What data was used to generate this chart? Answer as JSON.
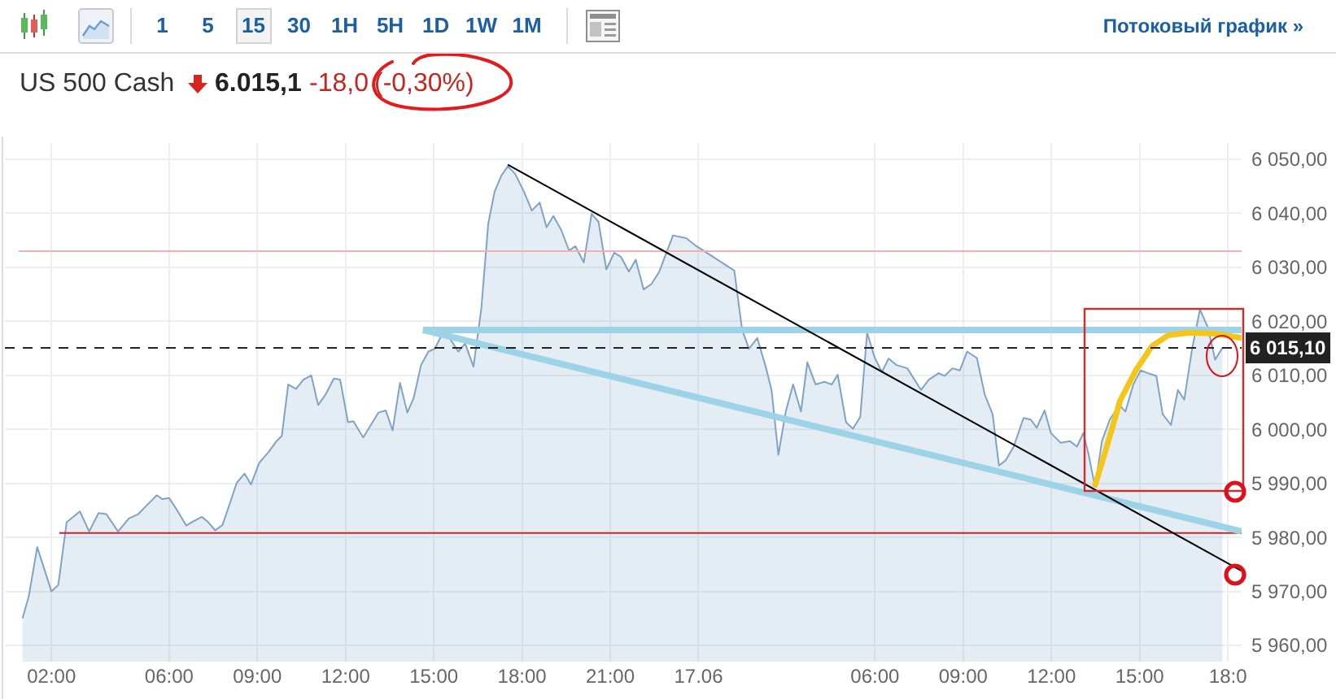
{
  "chart_data": {
    "type": "area",
    "title": "US 500 Cash",
    "annotations": [
      "1 5 15 30 1H 5H 1D 1W 1M",
      "Потоковый график »",
      "6.015,1",
      "-18,0",
      "(-0,30%)"
    ],
    "xlim": [
      "--06-16T00:25",
      "--06-17T18:28"
    ],
    "xticks": [
      {
        "value": "--06-16T02:00",
        "label": "02:00"
      },
      {
        "value": "--06-16T06:00",
        "label": "06:00"
      },
      {
        "value": "--06-16T09:00",
        "label": "09:00"
      },
      {
        "value": "--06-16T12:00",
        "label": "12:00"
      },
      {
        "value": "--06-16T15:00",
        "label": "15:00"
      },
      {
        "value": "--06-16T18:00",
        "label": "18:00"
      },
      {
        "value": "--06-16T21:00",
        "label": "21:00"
      },
      {
        "value": "--06-17",
        "label": "17.06"
      },
      {
        "value": "--06-17T06:00",
        "label": "06:00"
      },
      {
        "value": "--06-17T09:00",
        "label": "09:00"
      },
      {
        "value": "--06-17T12:00",
        "label": "12:00"
      },
      {
        "value": "--06-17T15:00",
        "label": "15:00"
      },
      {
        "value": "--06-17T18:00",
        "label": "18:0"
      }
    ],
    "ylim": [
      5957,
      6053
    ],
    "yticks": [
      {
        "value": 5960,
        "label": "5 960,00"
      },
      {
        "value": 5970,
        "label": "5 970,00"
      },
      {
        "value": 5980,
        "label": "5 980,00"
      },
      {
        "value": 5990,
        "label": "5 990,00"
      },
      {
        "value": 6000,
        "label": "6 000,00"
      },
      {
        "value": 6010,
        "label": "6 010,00"
      },
      {
        "value": 6020,
        "label": "6 020,00"
      },
      {
        "value": 6030,
        "label": "6 030,00"
      },
      {
        "value": 6040,
        "label": "6 040,00"
      },
      {
        "value": 6050,
        "label": "6 050,00"
      }
    ],
    "grid": true,
    "series": [
      {
        "color": "#7fa3c6",
        "x": [
          "--06-16T01:01",
          "--06-16T01:14",
          "--06-16T01:31",
          "--06-16T02:00",
          "--06-16T02:14",
          "--06-16T02:31",
          "--06-16T02:58",
          "--06-16T03:17",
          "--06-16T03:36",
          "--06-16T03:52",
          "--06-16T04:16",
          "--06-16T04:38",
          "--06-16T04:57",
          "--06-16T05:13",
          "--06-16T05:35",
          "--06-16T05:46",
          "--06-16T06:00",
          "--06-16T06:13",
          "--06-16T06:35",
          "--06-16T06:48",
          "--06-16T07:07",
          "--06-16T07:20",
          "--06-16T07:34",
          "--06-16T07:49",
          "--06-16T08:04",
          "--06-16T08:18",
          "--06-16T08:34",
          "--06-16T08:47",
          "--06-16T09:04",
          "--06-16T09:23",
          "--06-16T09:39",
          "--06-16T09:50",
          "--06-16T10:03",
          "--06-16T10:19",
          "--06-16T10:34",
          "--06-16T10:50",
          "--06-16T11:04",
          "--06-16T11:19",
          "--06-16T11:36",
          "--06-16T11:49",
          "--06-16T12:05",
          "--06-16T12:16",
          "--06-16T12:36",
          "--06-16T12:55",
          "--06-16T13:07",
          "--06-16T13:22",
          "--06-16T13:36",
          "--06-16T13:51",
          "--06-16T14:06",
          "--06-16T14:19",
          "--06-16T14:34",
          "--06-16T14:49",
          "--06-16T15:02",
          "--06-16T15:21",
          "--06-16T15:32",
          "--06-16T15:50",
          "--06-16T16:04",
          "--06-16T16:21",
          "--06-16T16:37",
          "--06-16T16:51",
          "--06-16T17:04",
          "--06-16T17:18",
          "--06-16T17:31",
          "--06-16T17:46",
          "--06-16T18:04",
          "--06-16T18:20",
          "--06-16T18:36",
          "--06-16T18:50",
          "--06-16T19:04",
          "--06-16T19:20",
          "--06-16T19:36",
          "--06-16T19:49",
          "--06-16T20:06",
          "--06-16T20:22",
          "--06-16T20:36",
          "--06-16T20:52",
          "--06-16T21:08",
          "--06-16T21:22",
          "--06-16T21:38",
          "--06-16T21:52",
          "--06-16T22:08",
          "--06-16T22:24",
          "--06-16T22:40",
          "--06-16T23:08",
          "--06-16T23:35",
          "--06-16T23:56",
          "--06-17T01:13",
          "--06-17T01:29",
          "--06-17T01:43",
          "--06-17T02:00",
          "--06-17T02:18",
          "--06-17T02:29",
          "--06-17T02:43",
          "--06-17T02:58",
          "--06-17T03:13",
          "--06-17T03:29",
          "--06-17T03:42",
          "--06-17T03:59",
          "--06-17T04:17",
          "--06-17T04:32",
          "--06-17T04:44",
          "--06-17T05:01",
          "--06-17T05:15",
          "--06-17T05:30",
          "--06-17T05:44",
          "--06-17T05:59",
          "--06-17T06:14",
          "--06-17T06:28",
          "--06-17T06:44",
          "--06-17T07:06",
          "--06-17T07:34",
          "--06-17T07:50",
          "--06-17T08:10",
          "--06-17T08:22",
          "--06-17T08:38",
          "--06-17T08:53",
          "--06-17T09:08",
          "--06-17T09:28",
          "--06-17T09:44",
          "--06-17T10:00",
          "--06-17T10:13",
          "--06-17T10:27",
          "--06-17T10:43",
          "--06-17T11:03",
          "--06-17T11:18",
          "--06-17T11:30",
          "--06-17T11:46",
          "--06-17T11:59",
          "--06-17T12:19",
          "--06-17T12:38",
          "--06-17T12:52",
          "--06-17T13:05",
          "--06-17T13:16",
          "--06-17T13:29",
          "--06-17T13:43",
          "--06-17T13:59",
          "--06-17T14:19",
          "--06-17T14:31",
          "--06-17T14:47",
          "--06-17T15:02",
          "--06-17T15:17",
          "--06-17T15:34",
          "--06-17T15:47",
          "--06-17T16:04",
          "--06-17T16:18",
          "--06-17T16:31",
          "--06-17T16:47",
          "--06-17T17:03",
          "--06-17T17:19",
          "--06-17T17:34",
          "--06-17T17:49"
        ],
        "values": [
          5965.0,
          5969.2,
          5978.2,
          5970.0,
          5971.2,
          5982.8,
          5984.8,
          5981.1,
          5984.5,
          5984.3,
          5981.1,
          5983.5,
          5984.3,
          5985.8,
          5987.8,
          5987.1,
          5987.3,
          5985.5,
          5982.2,
          5982.9,
          5983.8,
          5982.8,
          5981.3,
          5982.3,
          5986.3,
          5990.1,
          5991.8,
          5989.8,
          5993.8,
          5995.8,
          5997.8,
          5998.8,
          6008.3,
          6007.5,
          6009.2,
          6010.0,
          6004.5,
          6006.4,
          6009.4,
          6009.2,
          6001.3,
          6001.5,
          5998.5,
          6001.3,
          6003.1,
          6003.5,
          5999.8,
          6008.6,
          6003.1,
          6005.8,
          6011.9,
          6014.4,
          6014.9,
          6018.4,
          6016.9,
          6014.4,
          6015.9,
          6011.6,
          6022.4,
          6038.0,
          6044.0,
          6047.0,
          6048.7,
          6047.3,
          6044.0,
          6040.5,
          6042.0,
          6037.4,
          6039.5,
          6036.9,
          6033.1,
          6033.9,
          6030.9,
          6039.9,
          6038.4,
          6029.6,
          6032.7,
          6031.9,
          6029.2,
          6031.4,
          6025.9,
          6026.9,
          6029.2,
          6035.9,
          6035.4,
          6033.9,
          6029.4,
          6018.4,
          6014.9,
          6016.9,
          6011.3,
          6007.3,
          5995.3,
          6003.3,
          6008.3,
          6003.3,
          6012.4,
          6008.3,
          6008.8,
          6008.3,
          6010.1,
          6001.3,
          6000.1,
          6002.3,
          6017.9,
          6013.4,
          6010.6,
          6013.1,
          6011.9,
          6011.3,
          6007.3,
          6009.2,
          6010.4,
          6009.9,
          6011.3,
          6010.9,
          6014.4,
          6013.2,
          6006.4,
          6002.8,
          5993.3,
          5994.3,
          5996.8,
          6002.1,
          6001.8,
          6000.3,
          6003.5,
          5999.3,
          5997.5,
          5997.8,
          5996.8,
          5999.3,
          5995.3,
          5989.3,
          5997.8,
          6001.8,
          6004.5,
          6003.3,
          6008.3,
          6010.9,
          6010.4,
          6009.9,
          6002.8,
          6000.8,
          6007.3,
          6005.5,
          6014.9,
          6022.2,
          6018.9,
          6012.9,
          6015.1
        ]
      },
      {
        "type": "line",
        "color": "#f4b0b0",
        "x": [
          "--06-16T00:53",
          "--06-17T18:28"
        ],
        "values": [
          6033,
          6033
        ]
      },
      {
        "type": "line",
        "color": "#d42020",
        "x": [
          "--06-16T02:16",
          "--06-17T18:28"
        ],
        "values": [
          5980.8,
          5980.8
        ]
      },
      {
        "type": "line",
        "color": "#9dd3e6",
        "x": [
          "--06-16T14:38",
          "--06-17T18:28"
        ],
        "values": [
          6018.4,
          6018.4
        ]
      },
      {
        "type": "line",
        "color": "#9dd3e6",
        "x": [
          "--06-16T14:38",
          "--06-17T18:28"
        ],
        "values": [
          6018.4,
          5981.1
        ]
      },
      {
        "type": "line",
        "color": "#000000",
        "x": [
          "--06-16T17:31",
          "--06-17T18:28"
        ],
        "values": [
          6049.0,
          5973.8
        ]
      },
      {
        "type": "line",
        "color": "#f5c518",
        "x": [
          "--06-17T13:28",
          "--06-17T13:53",
          "--06-17T14:20",
          "--06-17T14:52",
          "--06-17T15:25",
          "--06-17T15:58",
          "--06-17T16:41",
          "--06-17T17:35",
          "--06-17T18:28"
        ],
        "values": [
          5989.3,
          5996.8,
          6005.3,
          6010.9,
          6015.4,
          6017.4,
          6017.9,
          6017.7,
          6016.9
        ]
      }
    ],
    "ref_lines": [
      {
        "axis": "y",
        "value": 6015.1,
        "label": "6 015,10",
        "color": "#222222",
        "line_style": "dashed"
      }
    ]
  }
}
